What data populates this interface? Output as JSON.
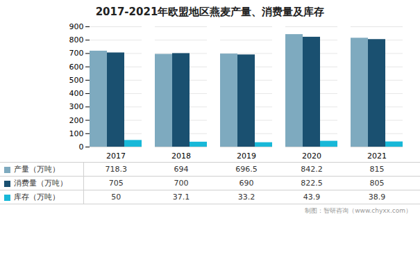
{
  "chart_data": {
    "type": "bar",
    "title": "2017-2021年欧盟地区燕麦产量、消费量及库存",
    "categories": [
      "2017",
      "2018",
      "2019",
      "2020",
      "2021"
    ],
    "series": [
      {
        "name": "产量（万吨）",
        "color": "#7eaabf",
        "values": [
          718.3,
          694,
          696.5,
          842.2,
          815
        ]
      },
      {
        "name": "消费量（万吨）",
        "color": "#1a5070",
        "values": [
          705,
          700,
          690,
          822.5,
          805
        ]
      },
      {
        "name": "库存（万吨）",
        "color": "#18b8d8",
        "values": [
          50,
          37.1,
          33.2,
          43.9,
          38.9
        ]
      }
    ],
    "ylim": [
      0,
      900
    ],
    "yticks": [
      0,
      100,
      200,
      300,
      400,
      500,
      600,
      700,
      800,
      900
    ],
    "grid": true,
    "legend": "bottom",
    "annotations": [
      "制图：智研咨询（www.chyxx.com）"
    ]
  }
}
